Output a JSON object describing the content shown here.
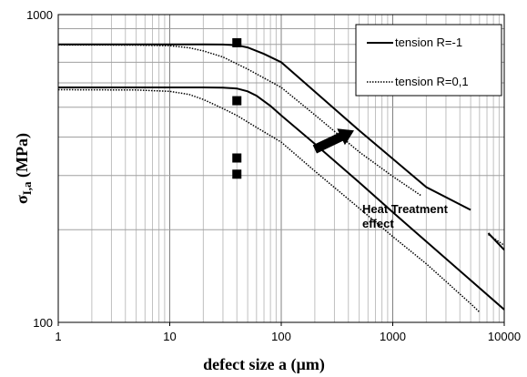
{
  "chart_data": {
    "type": "line",
    "x_scale": "log",
    "y_scale": "log",
    "xlim": [
      1,
      10000
    ],
    "ylim": [
      100,
      1000
    ],
    "xlabel": "defect size a (µm)",
    "ylabel_main": "σ",
    "ylabel_sub": "I,a",
    "ylabel_unit": " (MPa)",
    "x_ticks": [
      "1",
      "10",
      "100",
      "1000",
      "10000"
    ],
    "y_ticks": [
      "100",
      "1000"
    ],
    "grid": true,
    "legend": {
      "placement": "top-right",
      "entries": [
        {
          "label": "tension R=-1",
          "style": "solid"
        },
        {
          "label": "tension R=0,1",
          "style": "dotted"
        }
      ]
    },
    "series": [
      {
        "name": "tension R=-1",
        "style": "solid",
        "points": [
          [
            1,
            580
          ],
          [
            10,
            580
          ],
          [
            20,
            580
          ],
          [
            30,
            579
          ],
          [
            40,
            575
          ],
          [
            50,
            563
          ],
          [
            60,
            545
          ],
          [
            80,
            505
          ],
          [
            100,
            470
          ],
          [
            200,
            380
          ],
          [
            500,
            285
          ],
          [
            1000,
            228
          ],
          [
            2000,
            183
          ],
          [
            5000,
            137
          ],
          [
            10000,
            110
          ]
        ]
      },
      {
        "name": "tension R=0,1",
        "style": "dotted",
        "points": [
          [
            1,
            570
          ],
          [
            5,
            569
          ],
          [
            10,
            563
          ],
          [
            15,
            550
          ],
          [
            20,
            530
          ],
          [
            30,
            495
          ],
          [
            40,
            470
          ],
          [
            60,
            430
          ],
          [
            100,
            385
          ],
          [
            200,
            310
          ],
          [
            500,
            235
          ],
          [
            1000,
            190
          ],
          [
            2000,
            155
          ],
          [
            5000,
            115
          ],
          [
            6000,
            108
          ]
        ]
      },
      {
        "name": "tension R=-1",
        "style": "solid",
        "points": [
          [
            1,
            800
          ],
          [
            10,
            800
          ],
          [
            20,
            800
          ],
          [
            30,
            799
          ],
          [
            40,
            795
          ],
          [
            50,
            782
          ],
          [
            70,
            745
          ],
          [
            100,
            700
          ],
          [
            200,
            562
          ],
          [
            500,
            420
          ],
          [
            1000,
            340
          ],
          [
            2000,
            275
          ],
          [
            5000,
            232
          ]
        ]
      },
      {
        "name": "tension R=0,1",
        "style": "dotted",
        "points": [
          [
            1,
            797
          ],
          [
            5,
            796
          ],
          [
            10,
            792
          ],
          [
            15,
            780
          ],
          [
            20,
            762
          ],
          [
            30,
            728
          ],
          [
            50,
            665
          ],
          [
            100,
            580
          ],
          [
            200,
            472
          ],
          [
            500,
            358
          ],
          [
            1000,
            298
          ],
          [
            1800,
            258
          ]
        ]
      }
    ],
    "upper_solid_tail": [
      [
        7200,
        195
      ],
      [
        10000,
        172
      ]
    ],
    "upper_dotted_tail": [
      [
        7200,
        193
      ],
      [
        10000,
        178
      ]
    ],
    "markers": [
      {
        "x": 40,
        "y": 810
      },
      {
        "x": 40,
        "y": 525
      },
      {
        "x": 40,
        "y": 342
      },
      {
        "x": 40,
        "y": 303
      }
    ],
    "annotation": {
      "lines": [
        "Heat Treatment",
        "effect"
      ],
      "arrow_from": [
        200,
        365
      ],
      "arrow_to": [
        450,
        420
      ]
    }
  }
}
